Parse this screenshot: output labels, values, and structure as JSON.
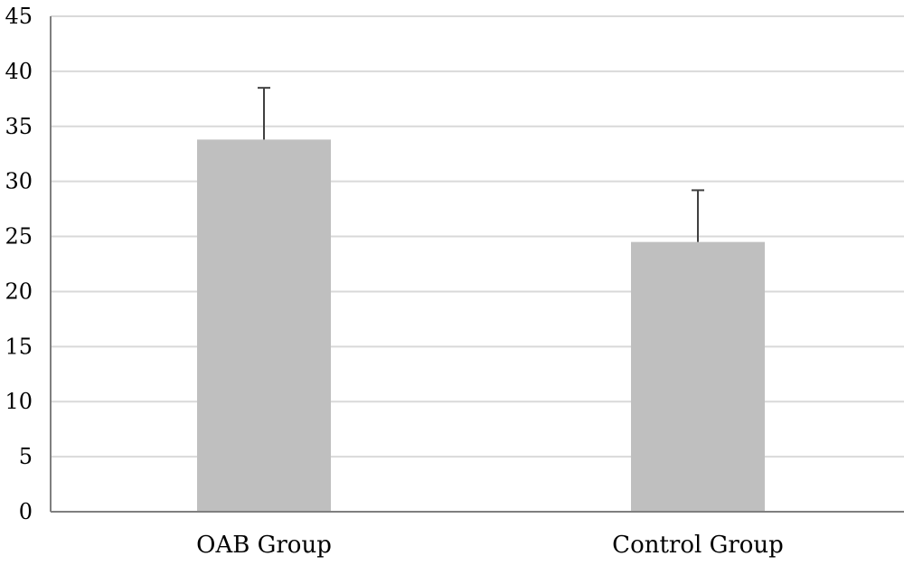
{
  "chart_data": {
    "type": "bar",
    "title": "",
    "xlabel": "",
    "ylabel": "",
    "categories": [
      "OAB Group",
      "Control Group"
    ],
    "values": [
      33.8,
      24.5
    ],
    "error_plus": [
      4.7,
      4.7
    ],
    "ylim": [
      0,
      45
    ],
    "yticks": [
      0,
      5,
      10,
      15,
      20,
      25,
      30,
      35,
      40,
      45
    ],
    "grid": true,
    "legend": "none",
    "colors": {
      "bar": "#bfbfbf",
      "grid": "#d9d9d9",
      "axis": "#7f7f7f",
      "error_bar": "#404040"
    }
  }
}
